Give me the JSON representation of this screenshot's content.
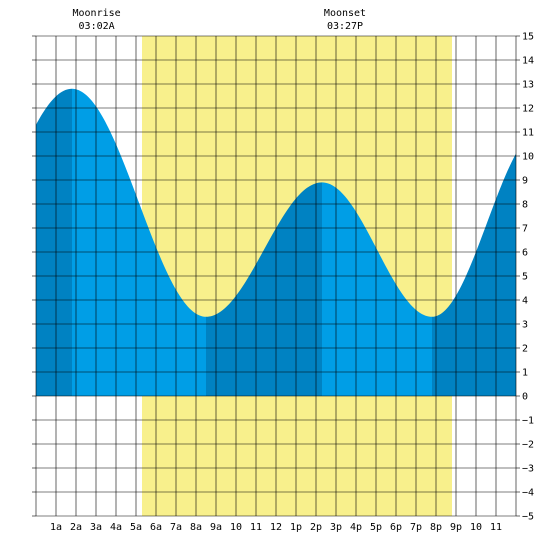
{
  "chart_data": {
    "type": "area",
    "title": "",
    "xlabel": "",
    "ylabel": "",
    "xlim": [
      0,
      24
    ],
    "ylim": [
      -5,
      15
    ],
    "grid": true,
    "x_tick_labels": [
      "1a",
      "2a",
      "3a",
      "4a",
      "5a",
      "6a",
      "7a",
      "8a",
      "9a",
      "10",
      "11",
      "12",
      "1p",
      "2p",
      "3p",
      "4p",
      "5p",
      "6p",
      "7p",
      "8p",
      "9p",
      "10",
      "11"
    ],
    "y_tick_labels": [
      "15",
      "14",
      "13",
      "12",
      "11",
      "10",
      "9",
      "8",
      "7",
      "6",
      "5",
      "4",
      "3",
      "2",
      "1",
      "0",
      "−1",
      "−2",
      "−3",
      "−4",
      "−5"
    ],
    "daylight": {
      "start_hour": 5.3,
      "end_hour": 20.8
    },
    "annotations": [
      {
        "label": "Moonrise",
        "time": "03:02A",
        "hour": 3.03
      },
      {
        "label": "Moonset",
        "time": "03:27P",
        "hour": 15.45
      }
    ],
    "tide_extremes": [
      {
        "hour": 1.8,
        "height": 12.8,
        "type": "high"
      },
      {
        "hour": 8.5,
        "height": 3.3,
        "type": "low"
      },
      {
        "hour": 14.3,
        "height": 8.9,
        "type": "high"
      },
      {
        "hour": 19.8,
        "height": 3.3,
        "type": "low"
      }
    ],
    "start_height": 11.3,
    "end_height": 10.1,
    "colors": {
      "daylight": "#f8f08c",
      "tide_light": "#009ee6",
      "tide_dark": "#0082c2",
      "grid": "#000000",
      "background": "#ffffff"
    }
  }
}
